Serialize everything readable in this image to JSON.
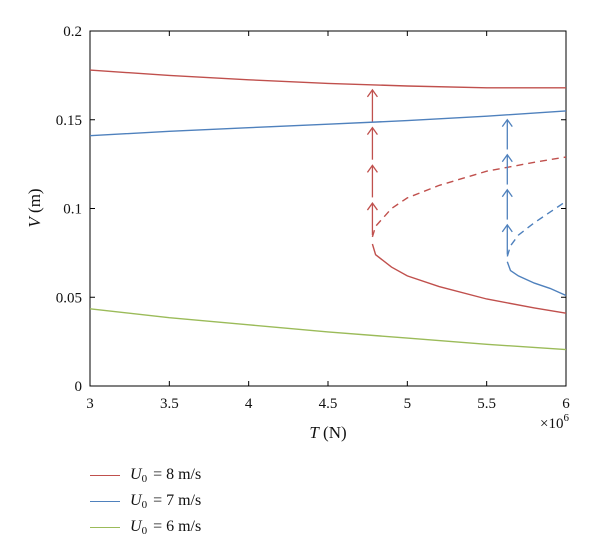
{
  "chart_data": {
    "type": "line",
    "xlabel": "T (N)",
    "ylabel": "V (m)",
    "x_multiplier": "×10^6",
    "xlim": [
      3,
      6
    ],
    "ylim": [
      0,
      0.2
    ],
    "xticks": [
      "3",
      "3.5",
      "4",
      "4.5",
      "5",
      "5.5",
      "6"
    ],
    "yticks": [
      "0",
      "0.05",
      "0.1",
      "0.15",
      "0.2"
    ],
    "grid": false,
    "legend_position": "bottom-left-outside",
    "series": [
      {
        "name": "U0 = 8 m/s",
        "color": "#c0504d",
        "stable_upper": [
          [
            3,
            0.178
          ],
          [
            3.5,
            0.175
          ],
          [
            4,
            0.1725
          ],
          [
            4.5,
            0.1705
          ],
          [
            5,
            0.169
          ],
          [
            5.5,
            0.168
          ],
          [
            6,
            0.168
          ]
        ],
        "stable_lower": [
          [
            4.78,
            0.08
          ],
          [
            4.8,
            0.074
          ],
          [
            4.9,
            0.067
          ],
          [
            5,
            0.062
          ],
          [
            5.2,
            0.056
          ],
          [
            5.5,
            0.049
          ],
          [
            5.8,
            0.044
          ],
          [
            6,
            0.041
          ]
        ],
        "unstable": [
          [
            4.78,
            0.084
          ],
          [
            4.8,
            0.09
          ],
          [
            4.9,
            0.1
          ],
          [
            5,
            0.106
          ],
          [
            5.2,
            0.113
          ],
          [
            5.5,
            0.121
          ],
          [
            5.8,
            0.126
          ],
          [
            6,
            0.129
          ]
        ],
        "jump_at": 4.78,
        "jump_range": [
          0.085,
          0.17
        ]
      },
      {
        "name": "U0 = 7 m/s",
        "color": "#4f81bd",
        "stable_upper": [
          [
            3,
            0.141
          ],
          [
            3.5,
            0.1435
          ],
          [
            4,
            0.1455
          ],
          [
            4.5,
            0.1475
          ],
          [
            5,
            0.1495
          ],
          [
            5.5,
            0.152
          ],
          [
            6,
            0.155
          ]
        ],
        "stable_lower": [
          [
            5.63,
            0.07
          ],
          [
            5.65,
            0.065
          ],
          [
            5.7,
            0.062
          ],
          [
            5.8,
            0.058
          ],
          [
            5.9,
            0.055
          ],
          [
            6,
            0.051
          ]
        ],
        "unstable": [
          [
            5.63,
            0.073
          ],
          [
            5.65,
            0.079
          ],
          [
            5.7,
            0.085
          ],
          [
            5.8,
            0.092
          ],
          [
            5.9,
            0.098
          ],
          [
            6,
            0.104
          ]
        ],
        "jump_at": 5.63,
        "jump_range": [
          0.074,
          0.153
        ]
      },
      {
        "name": "U0 = 6 m/s",
        "color": "#9bbb59",
        "stable_upper": [
          [
            3,
            0.0435
          ],
          [
            3.5,
            0.0385
          ],
          [
            4,
            0.0345
          ],
          [
            4.5,
            0.0305
          ],
          [
            5,
            0.027
          ],
          [
            5.5,
            0.0235
          ],
          [
            6,
            0.0205
          ]
        ],
        "stable_lower": [],
        "unstable": [],
        "jump_at": null,
        "jump_range": null
      }
    ]
  },
  "legend": [
    {
      "sym": "U",
      "sub": "0",
      "rest": "= 8 m/s",
      "color": "#c0504d"
    },
    {
      "sym": "U",
      "sub": "0",
      "rest": "= 7 m/s",
      "color": "#4f81bd"
    },
    {
      "sym": "U",
      "sub": "0",
      "rest": "= 6 m/s",
      "color": "#9bbb59"
    }
  ]
}
